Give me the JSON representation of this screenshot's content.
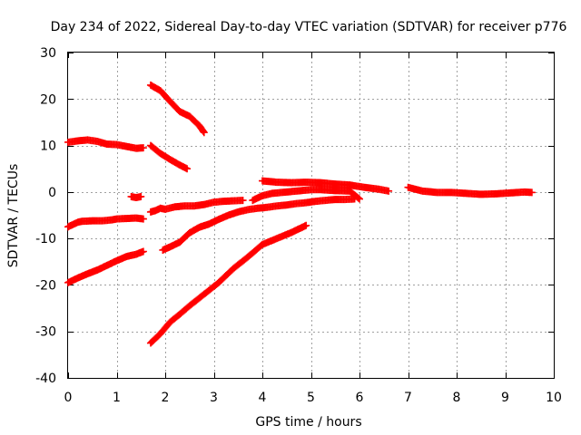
{
  "chart_data": {
    "type": "scatter",
    "title": "Day 234 of 2022, Sidereal Day-to-day VTEC variation (SDTVAR) for receiver p776",
    "xlabel": "GPS time / hours",
    "ylabel": "SDTVAR / TECUs",
    "xlim": [
      0,
      10
    ],
    "ylim": [
      -40,
      30
    ],
    "xticks": [
      "0",
      "1",
      "2",
      "3",
      "4",
      "5",
      "6",
      "7",
      "8",
      "9",
      "10"
    ],
    "yticks": [
      "-40",
      "-30",
      "-20",
      "-10",
      "0",
      "10",
      "20",
      "30"
    ],
    "grid": true,
    "marker": "plus",
    "color": "#ff0000",
    "series": [
      {
        "x": [
          0,
          0.2,
          0.4,
          0.6,
          0.8,
          1.0,
          1.2,
          1.4,
          1.55
        ],
        "y": [
          10.7,
          11.0,
          11.2,
          10.9,
          10.3,
          10.2,
          9.8,
          9.4,
          9.5
        ]
      },
      {
        "x": [
          0,
          0.1,
          0.2,
          0.3,
          0.5,
          0.7,
          0.9,
          1.0,
          1.2,
          1.4,
          1.55
        ],
        "y": [
          -7.5,
          -7.0,
          -6.5,
          -6.3,
          -6.2,
          -6.2,
          -6.0,
          -5.8,
          -5.7,
          -5.6,
          -5.8
        ]
      },
      {
        "x": [
          1.3,
          1.4,
          1.5
        ],
        "y": [
          -1.0,
          -1.2,
          -1.0
        ]
      },
      {
        "x": [
          0,
          0.2,
          0.4,
          0.6,
          0.8,
          1.0,
          1.2,
          1.4,
          1.55
        ],
        "y": [
          -19.5,
          -18.5,
          -17.6,
          -16.8,
          -15.8,
          -14.8,
          -13.9,
          -13.4,
          -12.8
        ]
      },
      {
        "x": [
          1.7,
          1.9,
          2.1,
          2.3,
          2.5,
          2.7,
          2.8
        ],
        "y": [
          23.0,
          21.8,
          19.5,
          17.3,
          16.3,
          14.3,
          12.8
        ]
      },
      {
        "x": [
          1.7,
          1.9,
          2.1,
          2.3,
          2.45
        ],
        "y": [
          10.0,
          8.3,
          7.0,
          5.8,
          5.0
        ]
      },
      {
        "x": [
          1.7,
          1.8,
          1.9,
          2.0,
          2.2,
          2.4,
          2.6,
          2.8,
          3.0,
          3.2,
          3.4,
          3.6
        ],
        "y": [
          -4.3,
          -4.0,
          -3.5,
          -3.7,
          -3.2,
          -3.0,
          -3.0,
          -2.7,
          -2.2,
          -2.0,
          -1.9,
          -1.8
        ]
      },
      {
        "x": [
          3.8,
          4.0,
          4.2,
          4.5,
          4.8,
          5.0,
          5.2,
          5.5,
          5.8,
          6.0
        ],
        "y": [
          -1.8,
          -0.8,
          -0.3,
          0.0,
          0.3,
          0.5,
          0.5,
          0.3,
          0.2,
          -1.5
        ]
      },
      {
        "x": [
          1.95,
          2.1,
          2.3,
          2.5,
          2.7,
          2.9,
          3.1,
          3.3,
          3.5,
          3.7,
          3.9,
          4.1,
          4.3,
          4.5,
          4.7,
          4.9,
          5.1,
          5.3,
          5.5,
          5.7,
          5.9
        ],
        "y": [
          -12.5,
          -11.8,
          -10.8,
          -8.8,
          -7.6,
          -6.9,
          -5.9,
          -5.0,
          -4.3,
          -3.8,
          -3.5,
          -3.3,
          -3.0,
          -2.8,
          -2.5,
          -2.3,
          -2.0,
          -1.8,
          -1.6,
          -1.6,
          -1.5
        ]
      },
      {
        "x": [
          1.7,
          1.9,
          2.1,
          2.3,
          2.5,
          2.8,
          3.1,
          3.4,
          3.7,
          4.0,
          4.3,
          4.6,
          4.9
        ],
        "y": [
          -32.5,
          -30.5,
          -28.0,
          -26.3,
          -24.5,
          -22.0,
          -19.5,
          -16.5,
          -14.0,
          -11.3,
          -10.0,
          -8.7,
          -7.2
        ]
      },
      {
        "x": [
          4.0,
          4.3,
          4.6,
          4.9,
          5.2,
          5.5,
          5.8,
          6.1,
          6.4,
          6.6
        ],
        "y": [
          2.4,
          2.1,
          2.0,
          2.1,
          2.0,
          1.7,
          1.5,
          1.0,
          0.6,
          0.2
        ]
      },
      {
        "x": [
          7.0,
          7.3,
          7.6,
          7.9,
          8.2,
          8.5,
          8.8,
          9.1,
          9.4,
          9.55
        ],
        "y": [
          1.0,
          0.2,
          -0.1,
          -0.1,
          -0.3,
          -0.5,
          -0.4,
          -0.2,
          0.0,
          -0.1
        ]
      }
    ]
  }
}
